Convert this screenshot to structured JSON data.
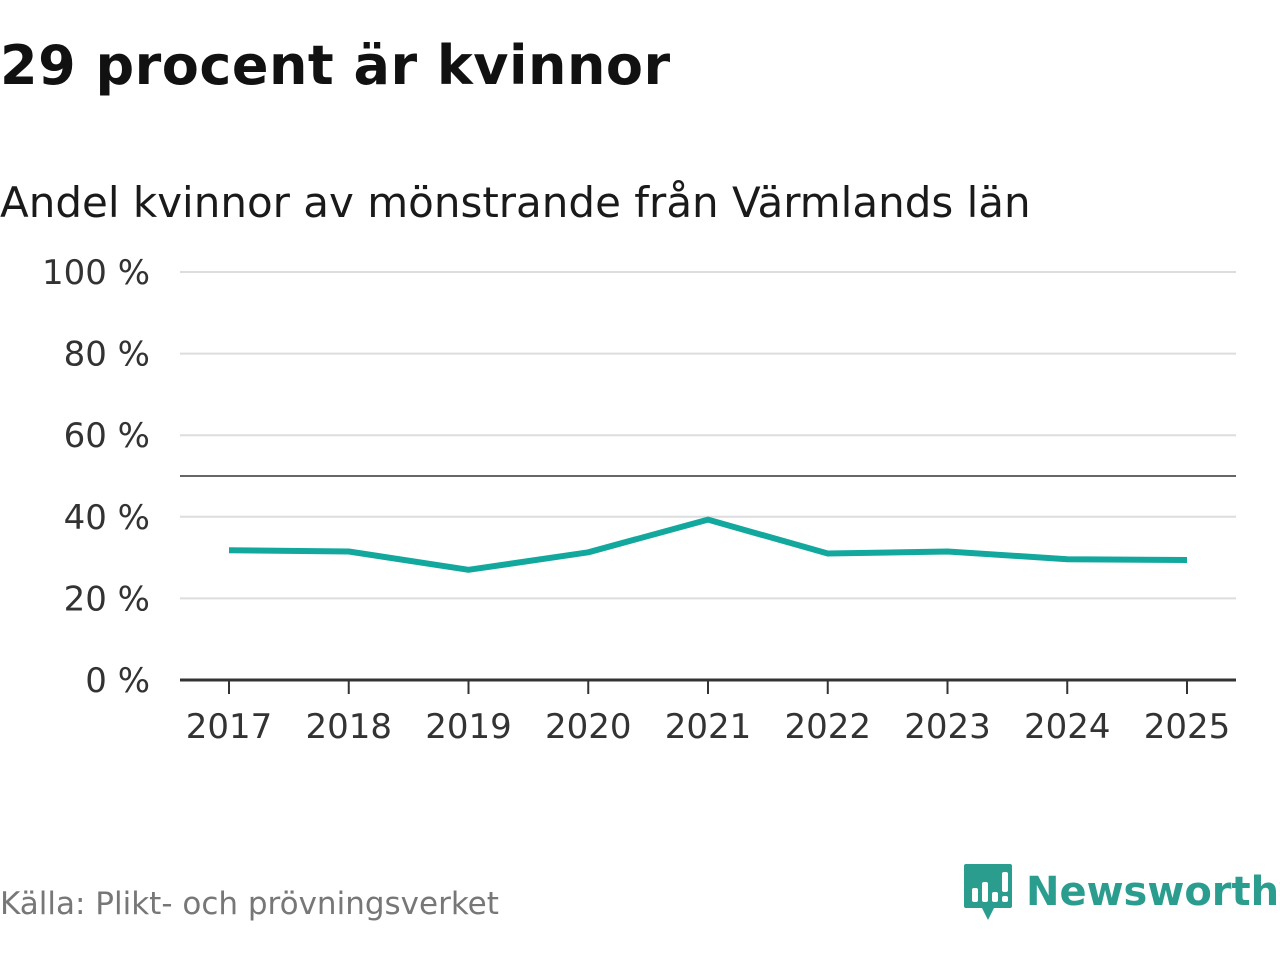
{
  "header": {
    "title": "29 procent är kvinnor"
  },
  "chart_data": {
    "type": "line",
    "title": "29 procent är kvinnor",
    "subtitle": "Andel kvinnor av mönstrande från Värmlands län",
    "x": [
      "2017",
      "2018",
      "2019",
      "2020",
      "2021",
      "2022",
      "2023",
      "2024",
      "2025"
    ],
    "series": [
      {
        "values": [
          31.8,
          31.5,
          27.0,
          31.3,
          39.3,
          31.0,
          31.5,
          29.6,
          29.4
        ]
      }
    ],
    "ylim": [
      0,
      100
    ],
    "yticks": [
      "0 %",
      "20 %",
      "40 %",
      "60 %",
      "80 %",
      "100 %"
    ],
    "ytick_values": [
      0,
      20,
      40,
      60,
      80,
      100
    ],
    "reference_line": 50,
    "grid": true,
    "line_color": "#13a89e"
  },
  "footer": {
    "source": "Källa: Plikt- och prövningsverket",
    "brand": "Newsworthy",
    "brand_color": "#2a9d8f",
    "brand_icon": "newsworthy-logo-icon"
  }
}
